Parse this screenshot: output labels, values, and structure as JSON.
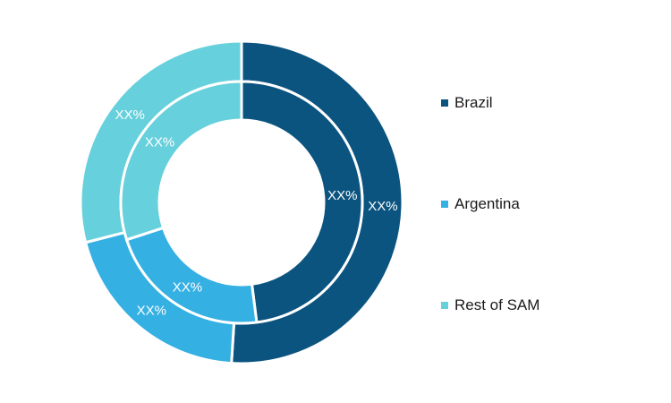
{
  "chart_data": {
    "type": "pie",
    "subtype": "nested-donut",
    "title": "",
    "legend_position": "right",
    "categories": [
      "Brazil",
      "Argentina",
      "Rest of SAM"
    ],
    "colors": [
      "#0b5480",
      "#35b0e3",
      "#66d0dc"
    ],
    "series": [
      {
        "ring": "outer",
        "values": [
          51,
          20,
          29
        ],
        "labels": [
          "XX%",
          "XX%",
          "XX%"
        ]
      },
      {
        "ring": "inner",
        "values": [
          48,
          22,
          30
        ],
        "labels": [
          "XX%",
          "XX%",
          "XX%"
        ]
      }
    ]
  }
}
